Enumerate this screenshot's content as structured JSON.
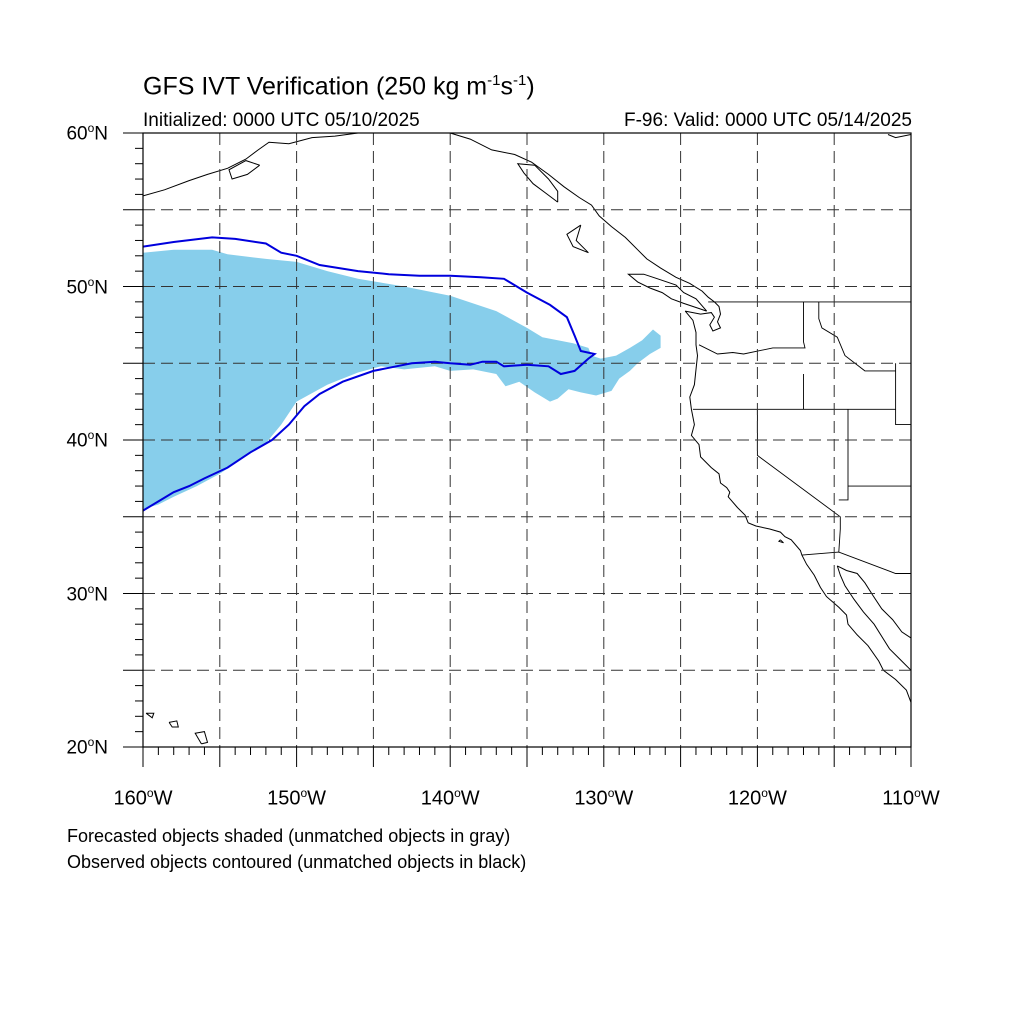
{
  "title_main": "GFS IVT Verification (250 kg m",
  "title_sup1": "-1",
  "title_mid": "s",
  "title_sup2": "-1",
  "title_end": ")",
  "initialized": "Initialized: 0000 UTC 05/10/2025",
  "valid": "F-96: Valid: 0000 UTC 05/14/2025",
  "footnote_forecast": "Forecasted objects shaded (unmatched objects in gray)",
  "footnote_observed": "Observed objects contoured (unmatched objects in black)",
  "colors": {
    "forecast_fill": "#87ceeb",
    "observed_contour": "#0000dd",
    "coastline": "#000000",
    "gridline": "#333333"
  },
  "map": {
    "lon_range": [
      -160,
      -110
    ],
    "lat_range": [
      20,
      60
    ],
    "lat_labels": [
      {
        "lat": 60,
        "num": "60",
        "hem": "N"
      },
      {
        "lat": 50,
        "num": "50",
        "hem": "N"
      },
      {
        "lat": 40,
        "num": "40",
        "hem": "N"
      },
      {
        "lat": 30,
        "num": "30",
        "hem": "N"
      },
      {
        "lat": 20,
        "num": "20",
        "hem": "N"
      }
    ],
    "lon_labels": [
      {
        "lon": -160,
        "num": "160",
        "hem": "W"
      },
      {
        "lon": -150,
        "num": "150",
        "hem": "W"
      },
      {
        "lon": -140,
        "num": "140",
        "hem": "W"
      },
      {
        "lon": -130,
        "num": "130",
        "hem": "W"
      },
      {
        "lon": -120,
        "num": "120",
        "hem": "W"
      },
      {
        "lon": -110,
        "num": "110",
        "hem": "W"
      }
    ],
    "grid_lats": [
      25,
      30,
      35,
      40,
      45,
      50,
      55
    ],
    "grid_lons": [
      -155,
      -150,
      -145,
      -140,
      -135,
      -130,
      -125,
      -120,
      -115
    ],
    "forecast_object": [
      [
        -160,
        52.2
      ],
      [
        -158,
        52.4
      ],
      [
        -155.5,
        52.4
      ],
      [
        -154.5,
        52.1
      ],
      [
        -152,
        51.8
      ],
      [
        -150,
        51.6
      ],
      [
        -148,
        51.0
      ],
      [
        -146,
        50.5
      ],
      [
        -143,
        50.0
      ],
      [
        -140,
        49.4
      ],
      [
        -137,
        48.4
      ],
      [
        -135,
        47.3
      ],
      [
        -134,
        46.7
      ],
      [
        -132,
        46.3
      ],
      [
        -131,
        46.0
      ],
      [
        -130.8,
        45.5
      ],
      [
        -130.2,
        45.3
      ],
      [
        -129.2,
        45.5
      ],
      [
        -128.3,
        46.0
      ],
      [
        -127.5,
        46.5
      ],
      [
        -126.8,
        47.2
      ],
      [
        -126.3,
        46.8
      ],
      [
        -126.3,
        46.0
      ],
      [
        -127,
        45.6
      ],
      [
        -127.8,
        45.0
      ],
      [
        -128.3,
        44.5
      ],
      [
        -129,
        44.0
      ],
      [
        -129.5,
        43.2
      ],
      [
        -130.5,
        42.9
      ],
      [
        -131.5,
        43.1
      ],
      [
        -132.3,
        43.3
      ],
      [
        -133,
        42.7
      ],
      [
        -133.5,
        42.5
      ],
      [
        -134.5,
        43.1
      ],
      [
        -135.5,
        43.8
      ],
      [
        -136.4,
        43.5
      ],
      [
        -137,
        44.3
      ],
      [
        -138.5,
        44.6
      ],
      [
        -140,
        44.5
      ],
      [
        -141,
        44.8
      ],
      [
        -143,
        44.6
      ],
      [
        -144.5,
        44.8
      ],
      [
        -146,
        44.4
      ],
      [
        -148,
        43.6
      ],
      [
        -150,
        42.5
      ],
      [
        -151,
        41.0
      ],
      [
        -152,
        39.8
      ],
      [
        -153.5,
        38.8
      ],
      [
        -155,
        37.8
      ],
      [
        -156.5,
        37.0
      ],
      [
        -158,
        36.3
      ],
      [
        -159,
        35.8
      ],
      [
        -160,
        35.5
      ]
    ],
    "observed_contour": [
      [
        -160,
        52.6
      ],
      [
        -158,
        52.9
      ],
      [
        -155.5,
        53.2
      ],
      [
        -154,
        53.1
      ],
      [
        -152,
        52.8
      ],
      [
        -151,
        52.2
      ],
      [
        -150,
        52.0
      ],
      [
        -148.5,
        51.4
      ],
      [
        -146,
        51.0
      ],
      [
        -144,
        50.8
      ],
      [
        -142,
        50.7
      ],
      [
        -140,
        50.7
      ],
      [
        -138,
        50.6
      ],
      [
        -136.5,
        50.5
      ],
      [
        -135,
        49.6
      ],
      [
        -133.5,
        48.8
      ],
      [
        -132.4,
        48.0
      ],
      [
        -131.9,
        46.8
      ],
      [
        -131.5,
        45.8
      ],
      [
        -130.6,
        45.6
      ],
      [
        -131,
        45.3
      ],
      [
        -131.9,
        44.5
      ],
      [
        -132.8,
        44.3
      ],
      [
        -133.6,
        44.8
      ],
      [
        -135,
        44.9
      ],
      [
        -136.5,
        44.8
      ],
      [
        -137,
        45.1
      ],
      [
        -137.9,
        45.1
      ],
      [
        -138.7,
        44.9
      ],
      [
        -140,
        45.0
      ],
      [
        -141,
        45.1
      ],
      [
        -142.5,
        45.0
      ],
      [
        -143.5,
        44.8
      ],
      [
        -145,
        44.5
      ],
      [
        -147,
        43.8
      ],
      [
        -148.5,
        43.0
      ],
      [
        -149.5,
        42.2
      ],
      [
        -150.5,
        41.0
      ],
      [
        -151.6,
        40.0
      ],
      [
        -153,
        39.2
      ],
      [
        -154.5,
        38.2
      ],
      [
        -156,
        37.5
      ],
      [
        -157,
        37.0
      ],
      [
        -158,
        36.6
      ],
      [
        -159,
        36.0
      ],
      [
        -160,
        35.4
      ]
    ],
    "coastlines": [
      [
        [
          -124.7,
          48.4
        ],
        [
          -124.2,
          47.8
        ],
        [
          -124.0,
          47.0
        ],
        [
          -124.0,
          46.2
        ],
        [
          -123.9,
          45.5
        ],
        [
          -124.0,
          44.6
        ],
        [
          -124.1,
          43.6
        ],
        [
          -124.4,
          42.8
        ],
        [
          -124.3,
          42.0
        ],
        [
          -124.1,
          41.0
        ],
        [
          -124.3,
          40.3
        ],
        [
          -123.8,
          39.7
        ],
        [
          -123.7,
          38.9
        ],
        [
          -123.0,
          38.2
        ],
        [
          -122.5,
          37.8
        ],
        [
          -122.4,
          37.2
        ],
        [
          -122.0,
          36.9
        ],
        [
          -121.8,
          36.6
        ],
        [
          -121.9,
          36.3
        ],
        [
          -121.3,
          35.6
        ],
        [
          -120.8,
          35.1
        ],
        [
          -120.6,
          34.6
        ],
        [
          -120.1,
          34.4
        ],
        [
          -119.2,
          34.2
        ],
        [
          -118.5,
          34.0
        ],
        [
          -118.2,
          33.7
        ],
        [
          -117.8,
          33.5
        ],
        [
          -117.2,
          32.8
        ],
        [
          -117.1,
          32.5
        ],
        [
          -116.8,
          31.9
        ],
        [
          -116.3,
          31.2
        ],
        [
          -115.9,
          30.4
        ],
        [
          -115.5,
          29.8
        ],
        [
          -114.7,
          29.1
        ],
        [
          -114.2,
          28.6
        ],
        [
          -114.1,
          28.0
        ],
        [
          -113.5,
          27.3
        ],
        [
          -112.8,
          26.6
        ],
        [
          -112.1,
          25.6
        ],
        [
          -111.8,
          25.0
        ],
        [
          -111.0,
          24.4
        ],
        [
          -110.3,
          23.7
        ],
        [
          -110.0,
          22.9
        ]
      ],
      [
        [
          -114.8,
          31.8
        ],
        [
          -114.6,
          31.2
        ],
        [
          -114.3,
          30.5
        ],
        [
          -113.7,
          29.6
        ],
        [
          -113.1,
          28.8
        ],
        [
          -112.4,
          28.0
        ],
        [
          -111.9,
          27.2
        ],
        [
          -111.4,
          26.4
        ],
        [
          -110.7,
          25.7
        ],
        [
          -110.0,
          25.0
        ]
      ],
      [
        [
          -110.0,
          27.1
        ],
        [
          -110.6,
          27.5
        ],
        [
          -111.2,
          28.3
        ],
        [
          -111.9,
          29.0
        ],
        [
          -112.5,
          29.9
        ],
        [
          -113.0,
          30.7
        ],
        [
          -113.5,
          31.3
        ],
        [
          -114.2,
          31.5
        ],
        [
          -114.8,
          31.8
        ]
      ],
      [
        [
          -122.8,
          49.0
        ],
        [
          -122.5,
          48.7
        ],
        [
          -122.4,
          48.2
        ],
        [
          -122.6,
          47.7
        ],
        [
          -122.4,
          47.3
        ],
        [
          -122.9,
          47.1
        ],
        [
          -123.1,
          47.5
        ],
        [
          -122.8,
          48.0
        ],
        [
          -123.0,
          48.3
        ],
        [
          -123.7,
          48.2
        ],
        [
          -124.7,
          48.4
        ]
      ],
      [
        [
          -123.3,
          48.4
        ],
        [
          -123.9,
          48.6
        ],
        [
          -124.8,
          48.9
        ],
        [
          -125.6,
          49.2
        ],
        [
          -126.2,
          49.6
        ],
        [
          -127.0,
          49.9
        ],
        [
          -127.8,
          50.3
        ],
        [
          -128.4,
          50.8
        ],
        [
          -127.4,
          50.8
        ],
        [
          -126.5,
          50.5
        ],
        [
          -125.3,
          50.1
        ],
        [
          -124.8,
          49.6
        ],
        [
          -124.0,
          49.2
        ],
        [
          -123.3,
          48.4
        ]
      ],
      [
        [
          -122.8,
          49.0
        ],
        [
          -123.2,
          49.3
        ],
        [
          -123.6,
          49.7
        ],
        [
          -124.4,
          50.2
        ],
        [
          -125.3,
          50.6
        ],
        [
          -126.3,
          51.2
        ],
        [
          -127.2,
          51.8
        ],
        [
          -127.8,
          52.4
        ],
        [
          -128.6,
          53.2
        ],
        [
          -129.5,
          53.9
        ],
        [
          -130.3,
          54.6
        ],
        [
          -130.8,
          55.3
        ],
        [
          -131.6,
          55.8
        ],
        [
          -132.6,
          56.5
        ],
        [
          -133.6,
          57.3
        ],
        [
          -134.7,
          58.1
        ],
        [
          -135.8,
          58.6
        ],
        [
          -137.3,
          58.9
        ],
        [
          -138.7,
          59.6
        ],
        [
          -140,
          60
        ]
      ],
      [
        [
          -131.5,
          54.0
        ],
        [
          -132.4,
          53.4
        ],
        [
          -132.0,
          52.6
        ],
        [
          -131.0,
          52.2
        ],
        [
          -131.8,
          53.0
        ],
        [
          -131.5,
          54.0
        ]
      ],
      [
        [
          -133.0,
          55.5
        ],
        [
          -133.8,
          56.1
        ],
        [
          -134.6,
          56.7
        ],
        [
          -135.2,
          57.4
        ],
        [
          -135.6,
          58.0
        ],
        [
          -134.5,
          57.9
        ],
        [
          -133.6,
          57.0
        ],
        [
          -133.0,
          56.2
        ],
        [
          -133.0,
          55.5
        ]
      ],
      [
        [
          -146,
          60
        ],
        [
          -147.5,
          59.8
        ],
        [
          -149,
          59.7
        ],
        [
          -150.5,
          59.3
        ],
        [
          -151.8,
          59.4
        ],
        [
          -152.5,
          58.9
        ],
        [
          -153.3,
          58.3
        ],
        [
          -154.5,
          57.7
        ],
        [
          -155.8,
          57.3
        ],
        [
          -157,
          56.9
        ],
        [
          -158.6,
          56.3
        ],
        [
          -160,
          55.9
        ]
      ],
      [
        [
          -152.4,
          57.9
        ],
        [
          -153.2,
          57.3
        ],
        [
          -154.2,
          57.0
        ],
        [
          -154.4,
          57.6
        ],
        [
          -153.3,
          58.2
        ],
        [
          -152.4,
          57.9
        ]
      ],
      [
        [
          -156.2,
          20.2
        ],
        [
          -156.6,
          20.9
        ],
        [
          -156.0,
          21.0
        ],
        [
          -155.8,
          20.3
        ],
        [
          -156.2,
          20.2
        ]
      ],
      [
        [
          -158.3,
          21.6
        ],
        [
          -158.1,
          21.3
        ],
        [
          -157.7,
          21.3
        ],
        [
          -157.8,
          21.7
        ],
        [
          -158.3,
          21.6
        ]
      ],
      [
        [
          -159.8,
          22.2
        ],
        [
          -159.3,
          22.2
        ],
        [
          -159.4,
          21.9
        ],
        [
          -159.8,
          22.2
        ]
      ],
      [
        [
          -110,
          59.9
        ],
        [
          -111,
          59.7
        ],
        [
          -111.5,
          59.9
        ]
      ],
      [
        [
          -118.5,
          33.5
        ],
        [
          -118.3,
          33.3
        ],
        [
          -118.6,
          33.4
        ],
        [
          -118.5,
          33.5
        ]
      ]
    ],
    "borders": [
      [
        [
          -123.2,
          49.0
        ],
        [
          -110,
          49.0
        ]
      ],
      [
        [
          -117.0,
          49.0
        ],
        [
          -117.0,
          46.4
        ],
        [
          -116.9,
          46.0
        ],
        [
          -119.0,
          46.0
        ],
        [
          -120.9,
          45.6
        ],
        [
          -121.6,
          45.7
        ],
        [
          -122.6,
          45.6
        ],
        [
          -123.8,
          46.2
        ]
      ],
      [
        [
          -124.2,
          42.0
        ],
        [
          -111.0,
          42.0
        ]
      ],
      [
        [
          -117.0,
          44.3
        ],
        [
          -117.0,
          42.0
        ]
      ],
      [
        [
          -116.0,
          49.0
        ],
        [
          -116.0,
          47.9
        ],
        [
          -115.8,
          47.3
        ],
        [
          -114.8,
          46.7
        ],
        [
          -114.3,
          45.5
        ],
        [
          -113.0,
          44.5
        ],
        [
          -111.0,
          44.5
        ]
      ],
      [
        [
          -120.0,
          42.0
        ],
        [
          -120.0,
          39.0
        ],
        [
          -114.6,
          35.0
        ],
        [
          -114.6,
          34.2
        ],
        [
          -114.7,
          32.7
        ]
      ],
      [
        [
          -114.1,
          42.0
        ],
        [
          -114.1,
          37.0
        ],
        [
          -114.1,
          36.1
        ],
        [
          -114.7,
          36.1
        ]
      ],
      [
        [
          -117.1,
          32.5
        ],
        [
          -114.7,
          32.7
        ],
        [
          -111.0,
          31.3
        ],
        [
          -110,
          31.3
        ]
      ],
      [
        [
          -111.0,
          45.0
        ],
        [
          -111.0,
          41.0
        ],
        [
          -110,
          41.0
        ]
      ],
      [
        [
          -114.1,
          37.0
        ],
        [
          -110,
          37.0
        ]
      ]
    ]
  }
}
